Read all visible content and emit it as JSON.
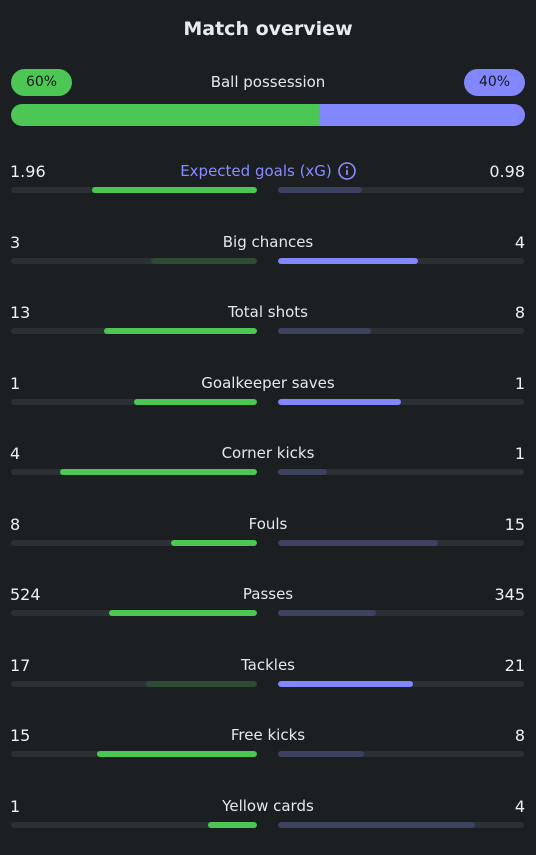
{
  "header": {
    "title": "Match overview"
  },
  "possession": {
    "label": "Ball possession",
    "home_label": "60%",
    "away_label": "40%",
    "home_fraction": 0.6,
    "away_fraction": 0.4
  },
  "colors": {
    "home": "#4cc756",
    "home_dim": "#2f4a35",
    "away": "#8287ff",
    "away_dim": "#3c4260",
    "track": "#2b3034",
    "accent": "#8a8cff"
  },
  "stats": [
    {
      "label": "Expected goals (xG)",
      "home": "1.96",
      "away": "0.98",
      "home_fraction": 0.67,
      "away_fraction": 0.34,
      "leader": "home",
      "info_icon": "info-icon",
      "accent": true
    },
    {
      "label": "Big chances",
      "home": "3",
      "away": "4",
      "home_fraction": 0.43,
      "away_fraction": 0.57,
      "leader": "away"
    },
    {
      "label": "Total shots",
      "home": "13",
      "away": "8",
      "home_fraction": 0.62,
      "away_fraction": 0.38,
      "leader": "home"
    },
    {
      "label": "Goalkeeper saves",
      "home": "1",
      "away": "1",
      "home_fraction": 0.5,
      "away_fraction": 0.5,
      "leader": "both"
    },
    {
      "label": "Corner kicks",
      "home": "4",
      "away": "1",
      "home_fraction": 0.8,
      "away_fraction": 0.2,
      "leader": "home"
    },
    {
      "label": "Fouls",
      "home": "8",
      "away": "15",
      "home_fraction": 0.35,
      "away_fraction": 0.65,
      "leader": "home"
    },
    {
      "label": "Passes",
      "home": "524",
      "away": "345",
      "home_fraction": 0.6,
      "away_fraction": 0.4,
      "leader": "home"
    },
    {
      "label": "Tackles",
      "home": "17",
      "away": "21",
      "home_fraction": 0.45,
      "away_fraction": 0.55,
      "leader": "away"
    },
    {
      "label": "Free kicks",
      "home": "15",
      "away": "8",
      "home_fraction": 0.65,
      "away_fraction": 0.35,
      "leader": "home"
    },
    {
      "label": "Yellow cards",
      "home": "1",
      "away": "4",
      "home_fraction": 0.2,
      "away_fraction": 0.8,
      "leader": "home"
    }
  ]
}
